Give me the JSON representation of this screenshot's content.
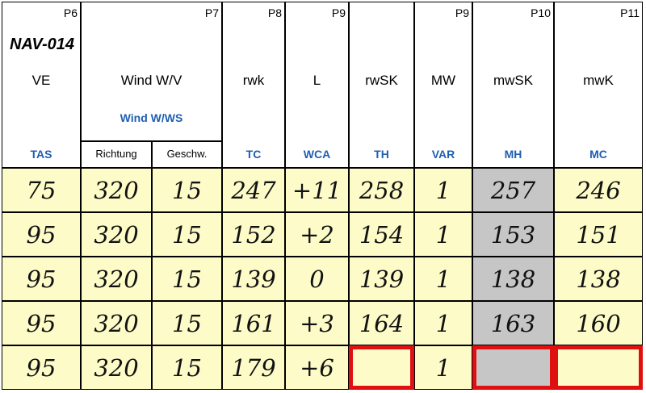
{
  "table": {
    "title": "NAV-014",
    "columns": [
      {
        "page": "P6",
        "label": "VE",
        "abbr": "TAS"
      },
      {
        "page": "P7",
        "label": "Wind W/V",
        "abbr": "Wind W/WS",
        "sub": [
          "Richtung",
          "Geschw."
        ]
      },
      {
        "page": "P8",
        "label": "rwk",
        "abbr": "TC"
      },
      {
        "page": "P9",
        "label": "L",
        "abbr": "WCA"
      },
      {
        "label": "rwSK",
        "abbr": "TH"
      },
      {
        "page": "P9",
        "label": "MW",
        "abbr": "VAR"
      },
      {
        "page": "P10",
        "label": "mwSK",
        "abbr": "MH"
      },
      {
        "page": "P11",
        "label": "mwK",
        "abbr": "MC"
      }
    ],
    "rows": [
      [
        "75",
        "320",
        "15",
        "247",
        "+11",
        "258",
        "1",
        "257",
        "246"
      ],
      [
        "95",
        "320",
        "15",
        "152",
        "+2",
        "154",
        "1",
        "153",
        "151"
      ],
      [
        "95",
        "320",
        "15",
        "139",
        "0",
        "139",
        "1",
        "138",
        "138"
      ],
      [
        "95",
        "320",
        "15",
        "161",
        "+3",
        "164",
        "1",
        "163",
        "160"
      ],
      [
        "95",
        "320",
        "15",
        "179",
        "+6",
        null,
        "1",
        null,
        null
      ]
    ]
  }
}
